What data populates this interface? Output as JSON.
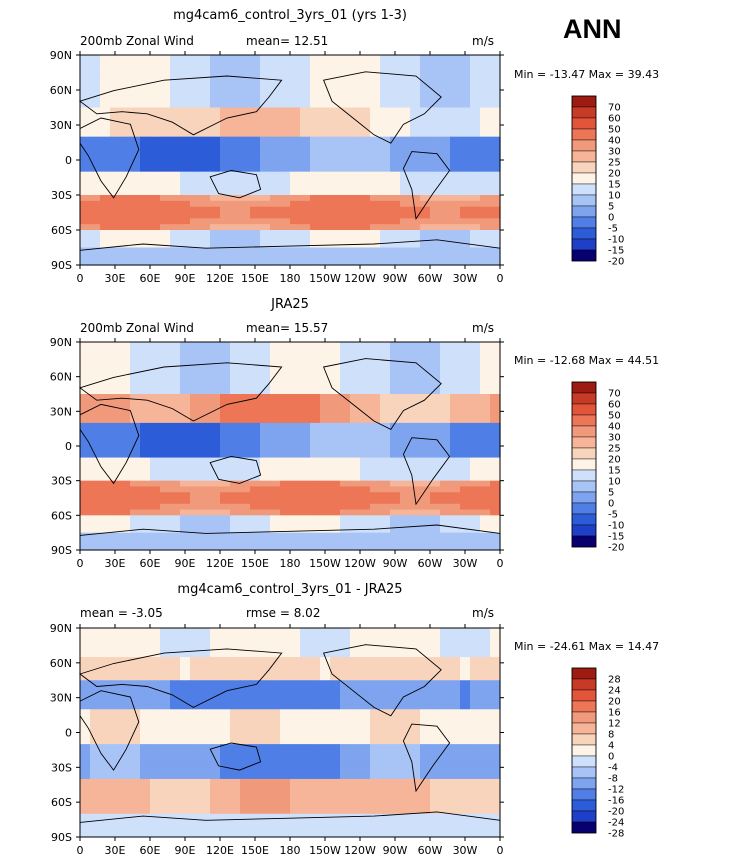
{
  "season": "ANN",
  "units": "m/s",
  "panels": [
    {
      "title": "mg4cam6_control_3yrs_01 (yrs 1-3)",
      "left_text": "200mb Zonal Wind",
      "mid_text": "mean=   12.51",
      "minmax": "Min = -13.47  Max =   39.43",
      "colorbar_labels": [
        "70",
        "60",
        "50",
        "40",
        "30",
        "25",
        "20",
        "15",
        "10",
        "5",
        "0",
        "-5",
        "-10",
        "-15",
        "-20"
      ]
    },
    {
      "title": "JRA25",
      "left_text": "200mb Zonal Wind",
      "mid_text": "mean=   15.57",
      "minmax": "Min = -12.68  Max =   44.51",
      "colorbar_labels": [
        "70",
        "60",
        "50",
        "40",
        "30",
        "25",
        "20",
        "15",
        "10",
        "5",
        "0",
        "-5",
        "-10",
        "-15",
        "-20"
      ]
    },
    {
      "title": "mg4cam6_control_3yrs_01 - JRA25",
      "left_text": "mean =   -3.05",
      "mid_text": "rmse =    8.02",
      "minmax": "Min = -24.61  Max =   14.47",
      "colorbar_labels": [
        "28",
        "24",
        "20",
        "16",
        "12",
        "8",
        "4",
        "0",
        "-4",
        "-8",
        "-12",
        "-16",
        "-20",
        "-24",
        "-28"
      ]
    }
  ],
  "lat_ticks": [
    "90N",
    "60N",
    "30N",
    "0",
    "30S",
    "60S",
    "90S"
  ],
  "lon_ticks": [
    "0",
    "30E",
    "60E",
    "90E",
    "120E",
    "150E",
    "180",
    "150W",
    "120W",
    "90W",
    "60W",
    "30W",
    "0"
  ],
  "colors": {
    "diverging": [
      "#08006e",
      "#1f3fc8",
      "#2d5cd8",
      "#4f7ee6",
      "#7ea3ef",
      "#a8c3f5",
      "#cfe0fb",
      "#fdf3e6",
      "#f9d4bc",
      "#f6b498",
      "#f19a7b",
      "#ec7656",
      "#e2553a",
      "#c73a26",
      "#9e1b12"
    ]
  }
}
